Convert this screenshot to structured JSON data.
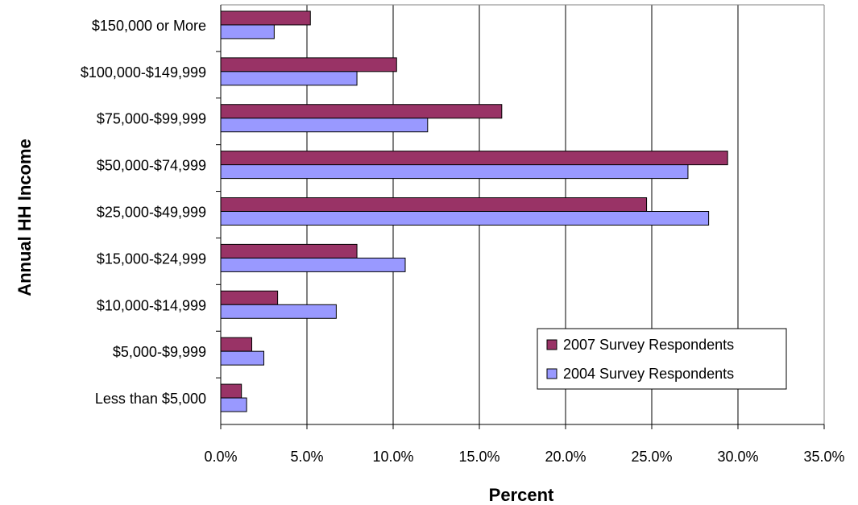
{
  "chart_data": {
    "type": "bar",
    "orientation": "horizontal",
    "xlabel": "Percent",
    "ylabel": "Annual HH Income",
    "xlim": [
      0,
      35
    ],
    "x_ticks": [
      "0.0%",
      "5.0%",
      "10.0%",
      "15.0%",
      "20.0%",
      "25.0%",
      "30.0%",
      "35.0%"
    ],
    "x_tick_values": [
      0,
      5,
      10,
      15,
      20,
      25,
      30,
      35
    ],
    "grid": "vertical",
    "legend_position": "bottom-right",
    "categories": [
      "$150,000 or More",
      "$100,000-$149,999",
      "$75,000-$99,999",
      "$50,000-$74,999",
      "$25,000-$49,999",
      "$15,000-$24,999",
      "$10,000-$14,999",
      "$5,000-$9,999",
      "Less than $5,000"
    ],
    "series": [
      {
        "name": "2007 Survey Respondents",
        "color": "#993366",
        "values": [
          5.2,
          10.2,
          16.3,
          29.4,
          24.7,
          7.9,
          3.3,
          1.8,
          1.2
        ]
      },
      {
        "name": "2004 Survey Respondents",
        "color": "#9999ff",
        "values": [
          3.1,
          7.9,
          12.0,
          27.1,
          28.3,
          10.7,
          6.7,
          2.5,
          1.5
        ]
      }
    ]
  }
}
